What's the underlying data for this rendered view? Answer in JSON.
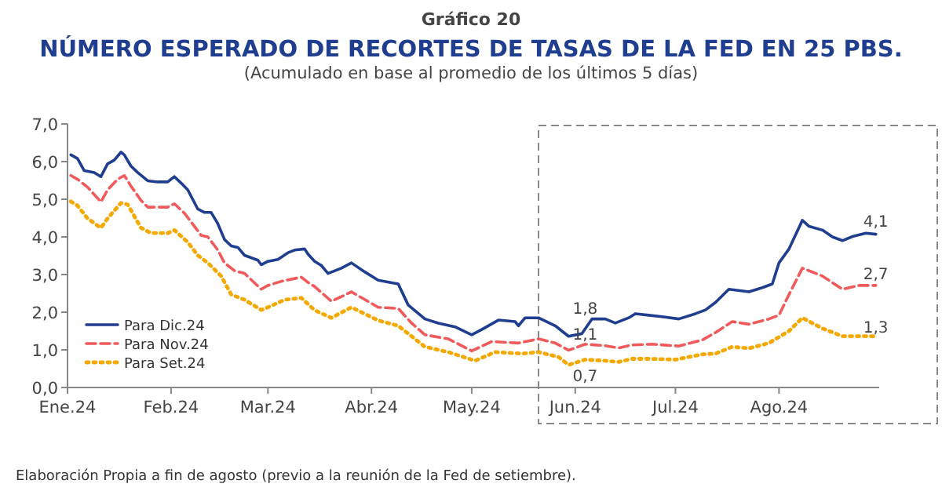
{
  "chart_data": {
    "type": "line",
    "title": "NÚMERO ESPERADO DE RECORTES DE TASAS DE LA FED EN 25 PBS.",
    "subtitle": "(Acumulado en base al promedio de los últimos 5 días)",
    "annotations": [
      "Gráfico 20",
      "Elaboración Propia a fin de agosto (previo a la reunión de la Fed de setiembre).",
      {
        "text": "1,8",
        "x": "2024-06-04",
        "y": 1.8
      },
      {
        "text": "1,1",
        "x": "2024-06-04",
        "y": 1.1
      },
      {
        "text": "0,7",
        "x": "2024-06-04",
        "y": 0.7
      },
      {
        "text": "4,1",
        "x": "2024-08-30",
        "y": 4.1
      },
      {
        "text": "2,7",
        "x": "2024-08-30",
        "y": 2.7
      },
      {
        "text": "1,3",
        "x": "2024-08-30",
        "y": 1.3
      }
    ],
    "xlim": [
      "2024-01-01",
      "2024-08-31"
    ],
    "xticks": [
      {
        "value": "2024-01-01",
        "label": "Ene.24"
      },
      {
        "value": "2024-02-01",
        "label": "Feb.24"
      },
      {
        "value": "2024-03-01",
        "label": "Mar.24"
      },
      {
        "value": "2024-04-01",
        "label": "Abr.24"
      },
      {
        "value": "2024-05-01",
        "label": "May.24"
      },
      {
        "value": "2024-06-01",
        "label": "Jun.24"
      },
      {
        "value": "2024-07-01",
        "label": "Jul.24"
      },
      {
        "value": "2024-08-01",
        "label": "Ago.24"
      }
    ],
    "ylim": [
      0,
      7
    ],
    "yticks": [
      {
        "value": 0,
        "label": "0,0"
      },
      {
        "value": 1,
        "label": "1,0"
      },
      {
        "value": 2,
        "label": "2,0"
      },
      {
        "value": 3,
        "label": "3,0"
      },
      {
        "value": 4,
        "label": "4,0"
      },
      {
        "value": 5,
        "label": "5,0"
      },
      {
        "value": 6,
        "label": "6,0"
      },
      {
        "value": 7,
        "label": "7,0"
      }
    ],
    "grid": false,
    "legend": "bottom left",
    "marker": "none",
    "series": [
      {
        "name": "Para Dic.24",
        "color": "#1f3e8f",
        "line_style": "solid",
        "x": [
          "2024-01-02",
          "2024-01-04",
          "2024-01-06",
          "2024-01-09",
          "2024-01-11",
          "2024-01-13",
          "2024-01-15",
          "2024-01-17",
          "2024-01-18",
          "2024-01-20",
          "2024-01-22",
          "2024-01-25",
          "2024-01-28",
          "2024-01-31",
          "2024-02-02",
          "2024-02-04",
          "2024-02-06",
          "2024-02-09",
          "2024-02-11",
          "2024-02-13",
          "2024-02-15",
          "2024-02-17",
          "2024-02-19",
          "2024-02-21",
          "2024-02-23",
          "2024-02-27",
          "2024-02-28",
          "2024-03-01",
          "2024-03-04",
          "2024-03-07",
          "2024-03-09",
          "2024-03-12",
          "2024-03-13",
          "2024-03-15",
          "2024-03-17",
          "2024-03-19",
          "2024-03-23",
          "2024-03-26",
          "2024-03-30",
          "2024-04-03",
          "2024-04-09",
          "2024-04-12",
          "2024-04-17",
          "2024-04-21",
          "2024-04-26",
          "2024-05-01",
          "2024-05-04",
          "2024-05-09",
          "2024-05-14",
          "2024-05-15",
          "2024-05-17",
          "2024-05-21",
          "2024-05-26",
          "2024-05-30",
          "2024-06-03",
          "2024-06-06",
          "2024-06-10",
          "2024-06-13",
          "2024-06-17",
          "2024-06-19",
          "2024-06-23",
          "2024-06-27",
          "2024-07-02",
          "2024-07-07",
          "2024-07-10",
          "2024-07-13",
          "2024-07-17",
          "2024-07-23",
          "2024-07-27",
          "2024-07-30",
          "2024-08-01",
          "2024-08-04",
          "2024-08-08",
          "2024-08-10",
          "2024-08-14",
          "2024-08-17",
          "2024-08-20",
          "2024-08-23",
          "2024-08-27",
          "2024-08-30"
        ],
        "values": [
          6.18,
          6.08,
          5.76,
          5.71,
          5.6,
          5.94,
          6.04,
          6.25,
          6.18,
          5.88,
          5.71,
          5.49,
          5.46,
          5.46,
          5.6,
          5.43,
          5.25,
          4.74,
          4.65,
          4.65,
          4.35,
          3.93,
          3.76,
          3.72,
          3.51,
          3.38,
          3.26,
          3.35,
          3.4,
          3.58,
          3.65,
          3.68,
          3.54,
          3.35,
          3.24,
          3.03,
          3.17,
          3.31,
          3.07,
          2.85,
          2.75,
          2.19,
          1.82,
          1.71,
          1.61,
          1.4,
          1.54,
          1.79,
          1.75,
          1.64,
          1.85,
          1.85,
          1.64,
          1.36,
          1.43,
          1.82,
          1.82,
          1.71,
          1.85,
          1.96,
          1.92,
          1.88,
          1.82,
          1.96,
          2.06,
          2.26,
          2.61,
          2.54,
          2.65,
          2.75,
          3.31,
          3.68,
          4.44,
          4.28,
          4.18,
          4.0,
          3.9,
          4.01,
          4.1,
          4.07
        ]
      },
      {
        "name": "Para Nov.24",
        "color": "#f05a5a",
        "line_style": "dashed",
        "x": [
          "2024-01-02",
          "2024-01-04",
          "2024-01-07",
          "2024-01-11",
          "2024-01-13",
          "2024-01-16",
          "2024-01-18",
          "2024-01-20",
          "2024-01-23",
          "2024-01-25",
          "2024-01-31",
          "2024-02-02",
          "2024-02-05",
          "2024-02-08",
          "2024-02-10",
          "2024-02-12",
          "2024-02-15",
          "2024-02-17",
          "2024-02-20",
          "2024-02-23",
          "2024-02-28",
          "2024-03-01",
          "2024-03-05",
          "2024-03-11",
          "2024-03-13",
          "2024-03-15",
          "2024-03-20",
          "2024-03-26",
          "2024-04-03",
          "2024-04-09",
          "2024-04-13",
          "2024-04-17",
          "2024-04-24",
          "2024-05-01",
          "2024-05-07",
          "2024-05-15",
          "2024-05-21",
          "2024-05-26",
          "2024-05-30",
          "2024-06-04",
          "2024-06-10",
          "2024-06-14",
          "2024-06-18",
          "2024-06-24",
          "2024-07-02",
          "2024-07-09",
          "2024-07-13",
          "2024-07-18",
          "2024-07-23",
          "2024-07-29",
          "2024-08-01",
          "2024-08-04",
          "2024-08-08",
          "2024-08-14",
          "2024-08-20",
          "2024-08-25",
          "2024-08-30"
        ],
        "values": [
          5.63,
          5.53,
          5.32,
          4.93,
          5.25,
          5.53,
          5.63,
          5.35,
          4.97,
          4.79,
          4.79,
          4.88,
          4.63,
          4.28,
          4.04,
          4.0,
          3.65,
          3.31,
          3.1,
          3.03,
          2.61,
          2.71,
          2.82,
          2.93,
          2.79,
          2.68,
          2.29,
          2.54,
          2.13,
          2.1,
          1.71,
          1.4,
          1.29,
          0.97,
          1.22,
          1.18,
          1.29,
          1.18,
          0.99,
          1.15,
          1.11,
          1.05,
          1.13,
          1.15,
          1.1,
          1.26,
          1.46,
          1.75,
          1.68,
          1.82,
          1.92,
          2.47,
          3.17,
          2.96,
          2.61,
          2.71,
          2.71
        ]
      },
      {
        "name": "Para Set.24",
        "color": "#f5a800",
        "line_style": "dotted",
        "x": [
          "2024-01-02",
          "2024-01-04",
          "2024-01-07",
          "2024-01-11",
          "2024-01-13",
          "2024-01-17",
          "2024-01-19",
          "2024-01-23",
          "2024-01-26",
          "2024-01-31",
          "2024-02-02",
          "2024-02-06",
          "2024-02-09",
          "2024-02-12",
          "2024-02-16",
          "2024-02-19",
          "2024-02-23",
          "2024-02-28",
          "2024-03-01",
          "2024-03-06",
          "2024-03-11",
          "2024-03-15",
          "2024-03-20",
          "2024-03-26",
          "2024-04-03",
          "2024-04-09",
          "2024-04-13",
          "2024-04-17",
          "2024-04-24",
          "2024-05-02",
          "2024-05-08",
          "2024-05-16",
          "2024-05-21",
          "2024-05-27",
          "2024-05-30",
          "2024-06-04",
          "2024-06-10",
          "2024-06-14",
          "2024-06-18",
          "2024-06-24",
          "2024-07-01",
          "2024-07-09",
          "2024-07-13",
          "2024-07-18",
          "2024-07-23",
          "2024-07-29",
          "2024-08-04",
          "2024-08-08",
          "2024-08-14",
          "2024-08-20",
          "2024-08-25",
          "2024-08-30"
        ],
        "values": [
          4.94,
          4.83,
          4.49,
          4.24,
          4.49,
          4.9,
          4.86,
          4.24,
          4.1,
          4.1,
          4.18,
          3.86,
          3.51,
          3.31,
          2.96,
          2.47,
          2.33,
          2.06,
          2.13,
          2.33,
          2.38,
          2.05,
          1.85,
          2.13,
          1.78,
          1.64,
          1.36,
          1.08,
          0.94,
          0.71,
          0.94,
          0.9,
          0.94,
          0.81,
          0.6,
          0.74,
          0.71,
          0.68,
          0.76,
          0.76,
          0.74,
          0.88,
          0.9,
          1.08,
          1.04,
          1.18,
          1.5,
          1.85,
          1.57,
          1.36,
          1.36,
          1.36
        ]
      }
    ]
  }
}
